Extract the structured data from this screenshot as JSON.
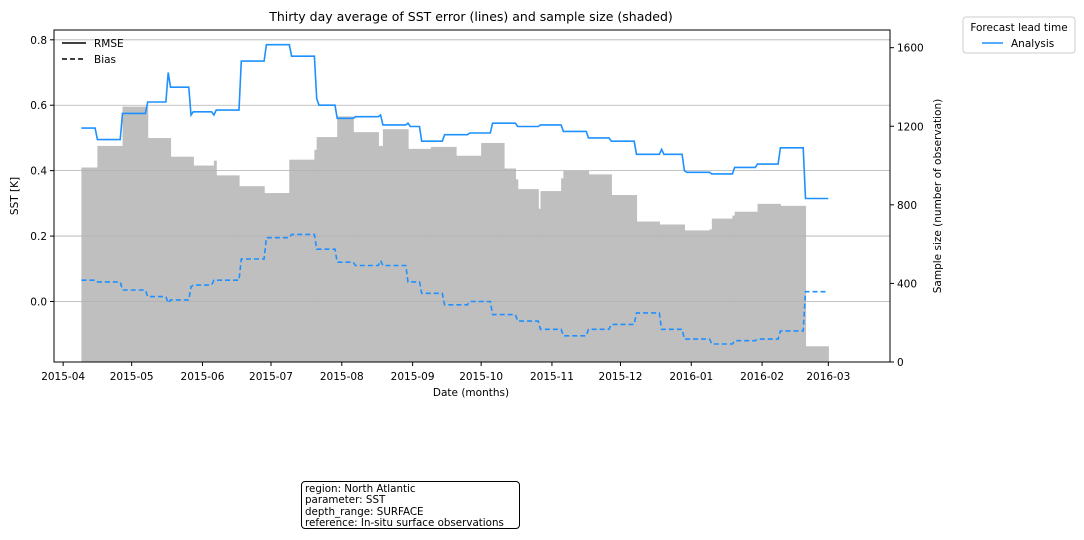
{
  "chart_data": {
    "type": "line",
    "title": "Thirty day average of SST error (lines) and sample size (shaded)",
    "xlabel": "Date (months)",
    "ylabel": "SST [K]",
    "y2label": "Sample size (number of observation)",
    "xlim": [
      "2015-03-28",
      "2016-03-28"
    ],
    "ylim": [
      -0.185,
      0.83
    ],
    "y2lim": [
      0,
      1690
    ],
    "x_ticks": [
      "2015-04",
      "2015-05",
      "2015-06",
      "2015-07",
      "2015-08",
      "2015-09",
      "2015-10",
      "2015-11",
      "2015-12",
      "2016-01",
      "2016-02",
      "2016-03"
    ],
    "y_ticks": [
      "0.0",
      "0.2",
      "0.4",
      "0.6",
      "0.8"
    ],
    "y2_ticks": [
      "0",
      "400",
      "800",
      "1200",
      "1600"
    ],
    "y_tick_values": [
      0.0,
      0.2,
      0.4,
      0.6,
      0.8
    ],
    "y2_tick_values": [
      0,
      400,
      800,
      1200,
      1600
    ],
    "grid": true,
    "style_legend": {
      "placement": "upper-left",
      "entries": [
        {
          "label": "RMSE",
          "dash": "solid"
        },
        {
          "label": "Bias",
          "dash": "dashed"
        }
      ]
    },
    "series_legend": {
      "title": "Forecast lead time",
      "placement": "outside-right",
      "entries": [
        {
          "label": "Analysis",
          "color": "#1e90ff"
        }
      ]
    },
    "series": [
      {
        "name": "Analysis",
        "color": "#1e90ff",
        "rmse": [
          [
            "2015-04-09",
            0.53
          ],
          [
            "2015-04-15",
            0.53
          ],
          [
            "2015-04-16",
            0.495
          ],
          [
            "2015-04-26",
            0.495
          ],
          [
            "2015-04-27",
            0.575
          ],
          [
            "2015-05-07",
            0.575
          ],
          [
            "2015-05-08",
            0.61
          ],
          [
            "2015-05-16",
            0.61
          ],
          [
            "2015-05-17",
            0.7
          ],
          [
            "2015-05-18",
            0.655
          ],
          [
            "2015-05-26",
            0.655
          ],
          [
            "2015-05-27",
            0.57
          ],
          [
            "2015-05-28",
            0.58
          ],
          [
            "2015-06-05",
            0.58
          ],
          [
            "2015-06-06",
            0.57
          ],
          [
            "2015-06-07",
            0.585
          ],
          [
            "2015-06-17",
            0.585
          ],
          [
            "2015-06-18",
            0.735
          ],
          [
            "2015-06-28",
            0.735
          ],
          [
            "2015-06-29",
            0.785
          ],
          [
            "2015-07-09",
            0.785
          ],
          [
            "2015-07-10",
            0.75
          ],
          [
            "2015-07-20",
            0.75
          ],
          [
            "2015-07-21",
            0.62
          ],
          [
            "2015-07-22",
            0.6
          ],
          [
            "2015-07-29",
            0.6
          ],
          [
            "2015-07-30",
            0.56
          ],
          [
            "2015-08-06",
            0.56
          ],
          [
            "2015-08-07",
            0.565
          ],
          [
            "2015-08-17",
            0.565
          ],
          [
            "2015-08-18",
            0.57
          ],
          [
            "2015-08-19",
            0.54
          ],
          [
            "2015-08-29",
            0.54
          ],
          [
            "2015-08-30",
            0.545
          ],
          [
            "2015-08-31",
            0.535
          ],
          [
            "2015-09-04",
            0.535
          ],
          [
            "2015-09-05",
            0.49
          ],
          [
            "2015-09-14",
            0.49
          ],
          [
            "2015-09-15",
            0.51
          ],
          [
            "2015-09-25",
            0.51
          ],
          [
            "2015-09-26",
            0.515
          ],
          [
            "2015-10-05",
            0.515
          ],
          [
            "2015-10-06",
            0.545
          ],
          [
            "2015-10-16",
            0.545
          ],
          [
            "2015-10-17",
            0.535
          ],
          [
            "2015-10-26",
            0.535
          ],
          [
            "2015-10-27",
            0.54
          ],
          [
            "2015-11-05",
            0.54
          ],
          [
            "2015-11-06",
            0.52
          ],
          [
            "2015-11-16",
            0.52
          ],
          [
            "2015-11-17",
            0.5
          ],
          [
            "2015-11-26",
            0.5
          ],
          [
            "2015-11-27",
            0.49
          ],
          [
            "2015-12-07",
            0.49
          ],
          [
            "2015-12-08",
            0.45
          ],
          [
            "2015-12-18",
            0.45
          ],
          [
            "2015-12-19",
            0.465
          ],
          [
            "2015-12-20",
            0.45
          ],
          [
            "2015-12-28",
            0.45
          ],
          [
            "2015-12-29",
            0.4
          ],
          [
            "2015-12-30",
            0.395
          ],
          [
            "2016-01-09",
            0.395
          ],
          [
            "2016-01-10",
            0.39
          ],
          [
            "2016-01-19",
            0.39
          ],
          [
            "2016-01-20",
            0.41
          ],
          [
            "2016-01-29",
            0.41
          ],
          [
            "2016-01-30",
            0.42
          ],
          [
            "2016-02-08",
            0.42
          ],
          [
            "2016-02-09",
            0.47
          ],
          [
            "2016-02-19",
            0.47
          ],
          [
            "2016-02-20",
            0.315
          ],
          [
            "2016-03-01",
            0.315
          ]
        ],
        "bias": [
          [
            "2015-04-09",
            0.065
          ],
          [
            "2015-04-15",
            0.065
          ],
          [
            "2015-04-16",
            0.06
          ],
          [
            "2015-04-26",
            0.06
          ],
          [
            "2015-04-27",
            0.035
          ],
          [
            "2015-05-07",
            0.035
          ],
          [
            "2015-05-08",
            0.015
          ],
          [
            "2015-05-16",
            0.015
          ],
          [
            "2015-05-17",
            -0.005
          ],
          [
            "2015-05-18",
            0.005
          ],
          [
            "2015-05-26",
            0.005
          ],
          [
            "2015-05-27",
            0.045
          ],
          [
            "2015-05-28",
            0.05
          ],
          [
            "2015-06-05",
            0.05
          ],
          [
            "2015-06-06",
            0.065
          ],
          [
            "2015-06-17",
            0.065
          ],
          [
            "2015-06-18",
            0.13
          ],
          [
            "2015-06-28",
            0.13
          ],
          [
            "2015-06-29",
            0.195
          ],
          [
            "2015-07-09",
            0.195
          ],
          [
            "2015-07-10",
            0.205
          ],
          [
            "2015-07-20",
            0.205
          ],
          [
            "2015-07-21",
            0.16
          ],
          [
            "2015-07-29",
            0.16
          ],
          [
            "2015-07-30",
            0.12
          ],
          [
            "2015-08-06",
            0.12
          ],
          [
            "2015-08-07",
            0.11
          ],
          [
            "2015-08-17",
            0.11
          ],
          [
            "2015-08-18",
            0.125
          ],
          [
            "2015-08-19",
            0.11
          ],
          [
            "2015-08-29",
            0.11
          ],
          [
            "2015-08-30",
            0.06
          ],
          [
            "2015-09-04",
            0.06
          ],
          [
            "2015-09-05",
            0.025
          ],
          [
            "2015-09-14",
            0.025
          ],
          [
            "2015-09-15",
            -0.01
          ],
          [
            "2015-09-25",
            -0.01
          ],
          [
            "2015-09-26",
            0.0
          ],
          [
            "2015-10-05",
            0.0
          ],
          [
            "2015-10-06",
            -0.04
          ],
          [
            "2015-10-16",
            -0.04
          ],
          [
            "2015-10-17",
            -0.06
          ],
          [
            "2015-10-26",
            -0.06
          ],
          [
            "2015-10-27",
            -0.085
          ],
          [
            "2015-11-05",
            -0.085
          ],
          [
            "2015-11-06",
            -0.105
          ],
          [
            "2015-11-16",
            -0.105
          ],
          [
            "2015-11-17",
            -0.085
          ],
          [
            "2015-11-26",
            -0.085
          ],
          [
            "2015-11-27",
            -0.07
          ],
          [
            "2015-12-07",
            -0.07
          ],
          [
            "2015-12-08",
            -0.035
          ],
          [
            "2015-12-18",
            -0.035
          ],
          [
            "2015-12-19",
            -0.085
          ],
          [
            "2015-12-28",
            -0.085
          ],
          [
            "2015-12-29",
            -0.115
          ],
          [
            "2016-01-09",
            -0.115
          ],
          [
            "2016-01-10",
            -0.13
          ],
          [
            "2016-01-19",
            -0.13
          ],
          [
            "2016-01-20",
            -0.12
          ],
          [
            "2016-01-29",
            -0.12
          ],
          [
            "2016-01-30",
            -0.115
          ],
          [
            "2016-02-08",
            -0.115
          ],
          [
            "2016-02-09",
            -0.09
          ],
          [
            "2016-02-19",
            -0.09
          ],
          [
            "2016-02-20",
            0.03
          ],
          [
            "2016-03-01",
            0.03
          ]
        ],
        "sample_size": [
          [
            "2015-04-09",
            990
          ],
          [
            "2015-04-16",
            1100
          ],
          [
            "2015-04-27",
            1300
          ],
          [
            "2015-05-08",
            1140
          ],
          [
            "2015-05-18",
            1045
          ],
          [
            "2015-05-28",
            1000
          ],
          [
            "2015-06-06",
            1025
          ],
          [
            "2015-06-07",
            950
          ],
          [
            "2015-06-17",
            895
          ],
          [
            "2015-06-28",
            860
          ],
          [
            "2015-07-09",
            1030
          ],
          [
            "2015-07-20",
            1080
          ],
          [
            "2015-07-21",
            1145
          ],
          [
            "2015-07-30",
            1250
          ],
          [
            "2015-08-06",
            1170
          ],
          [
            "2015-08-17",
            1100
          ],
          [
            "2015-08-19",
            1185
          ],
          [
            "2015-08-30",
            1085
          ],
          [
            "2015-09-09",
            1095
          ],
          [
            "2015-09-20",
            1050
          ],
          [
            "2015-10-01",
            1115
          ],
          [
            "2015-10-11",
            985
          ],
          [
            "2015-10-16",
            930
          ],
          [
            "2015-10-17",
            880
          ],
          [
            "2015-10-25",
            880
          ],
          [
            "2015-10-26",
            780
          ],
          [
            "2015-10-27",
            870
          ],
          [
            "2015-11-05",
            935
          ],
          [
            "2015-11-06",
            975
          ],
          [
            "2015-11-17",
            955
          ],
          [
            "2015-11-27",
            850
          ],
          [
            "2015-12-08",
            715
          ],
          [
            "2015-12-18",
            700
          ],
          [
            "2015-12-29",
            670
          ],
          [
            "2016-01-09",
            675
          ],
          [
            "2016-01-10",
            730
          ],
          [
            "2016-01-19",
            745
          ],
          [
            "2016-01-20",
            765
          ],
          [
            "2016-01-30",
            805
          ],
          [
            "2016-02-09",
            795
          ],
          [
            "2016-02-20",
            80
          ],
          [
            "2016-03-01",
            80
          ]
        ]
      }
    ]
  },
  "info_box": {
    "line1": "region: North Atlantic",
    "line2": "parameter: SST",
    "line3": "depth_range: SURFACE",
    "line4": "reference: In-situ surface observations"
  }
}
